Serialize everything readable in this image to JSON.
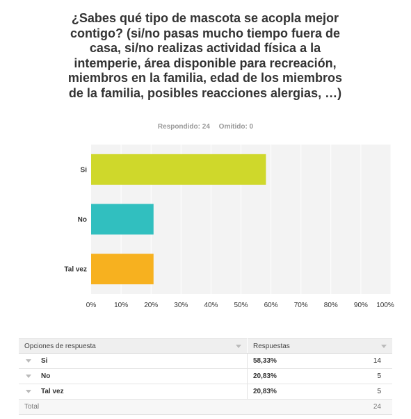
{
  "question": "¿Sabes qué tipo de mascota se acopla mejor contigo? (si/no pasas mucho tiempo fuera de casa, si/no realizas actividad física a la intemperie, área disponible para recreación, miembros en la familia, edad de los miembros de la familia, posibles reacciones alergias, …)",
  "meta": {
    "answered": "Respondido: 24",
    "skipped": "Omitido: 0"
  },
  "chart_data": {
    "type": "bar",
    "orientation": "horizontal",
    "categories": [
      "Si",
      "No",
      "Tal vez"
    ],
    "values": [
      58.33,
      20.83,
      20.83
    ],
    "colors": [
      "#cfd82b",
      "#31bfbf",
      "#f7b11f"
    ],
    "xlim": [
      0,
      100
    ],
    "xticks": [
      "0%",
      "10%",
      "20%",
      "30%",
      "40%",
      "50%",
      "60%",
      "70%",
      "80%",
      "90%",
      "100%"
    ],
    "grid": true
  },
  "table": {
    "headers": {
      "options": "Opciones de respuesta",
      "responses": "Respuestas"
    },
    "rows": [
      {
        "option": "Si",
        "percent": "58,33%",
        "count": "14"
      },
      {
        "option": "No",
        "percent": "20,83%",
        "count": "5"
      },
      {
        "option": "Tal vez",
        "percent": "20,83%",
        "count": "5"
      }
    ],
    "total": {
      "label": "Total",
      "count": "24"
    }
  }
}
